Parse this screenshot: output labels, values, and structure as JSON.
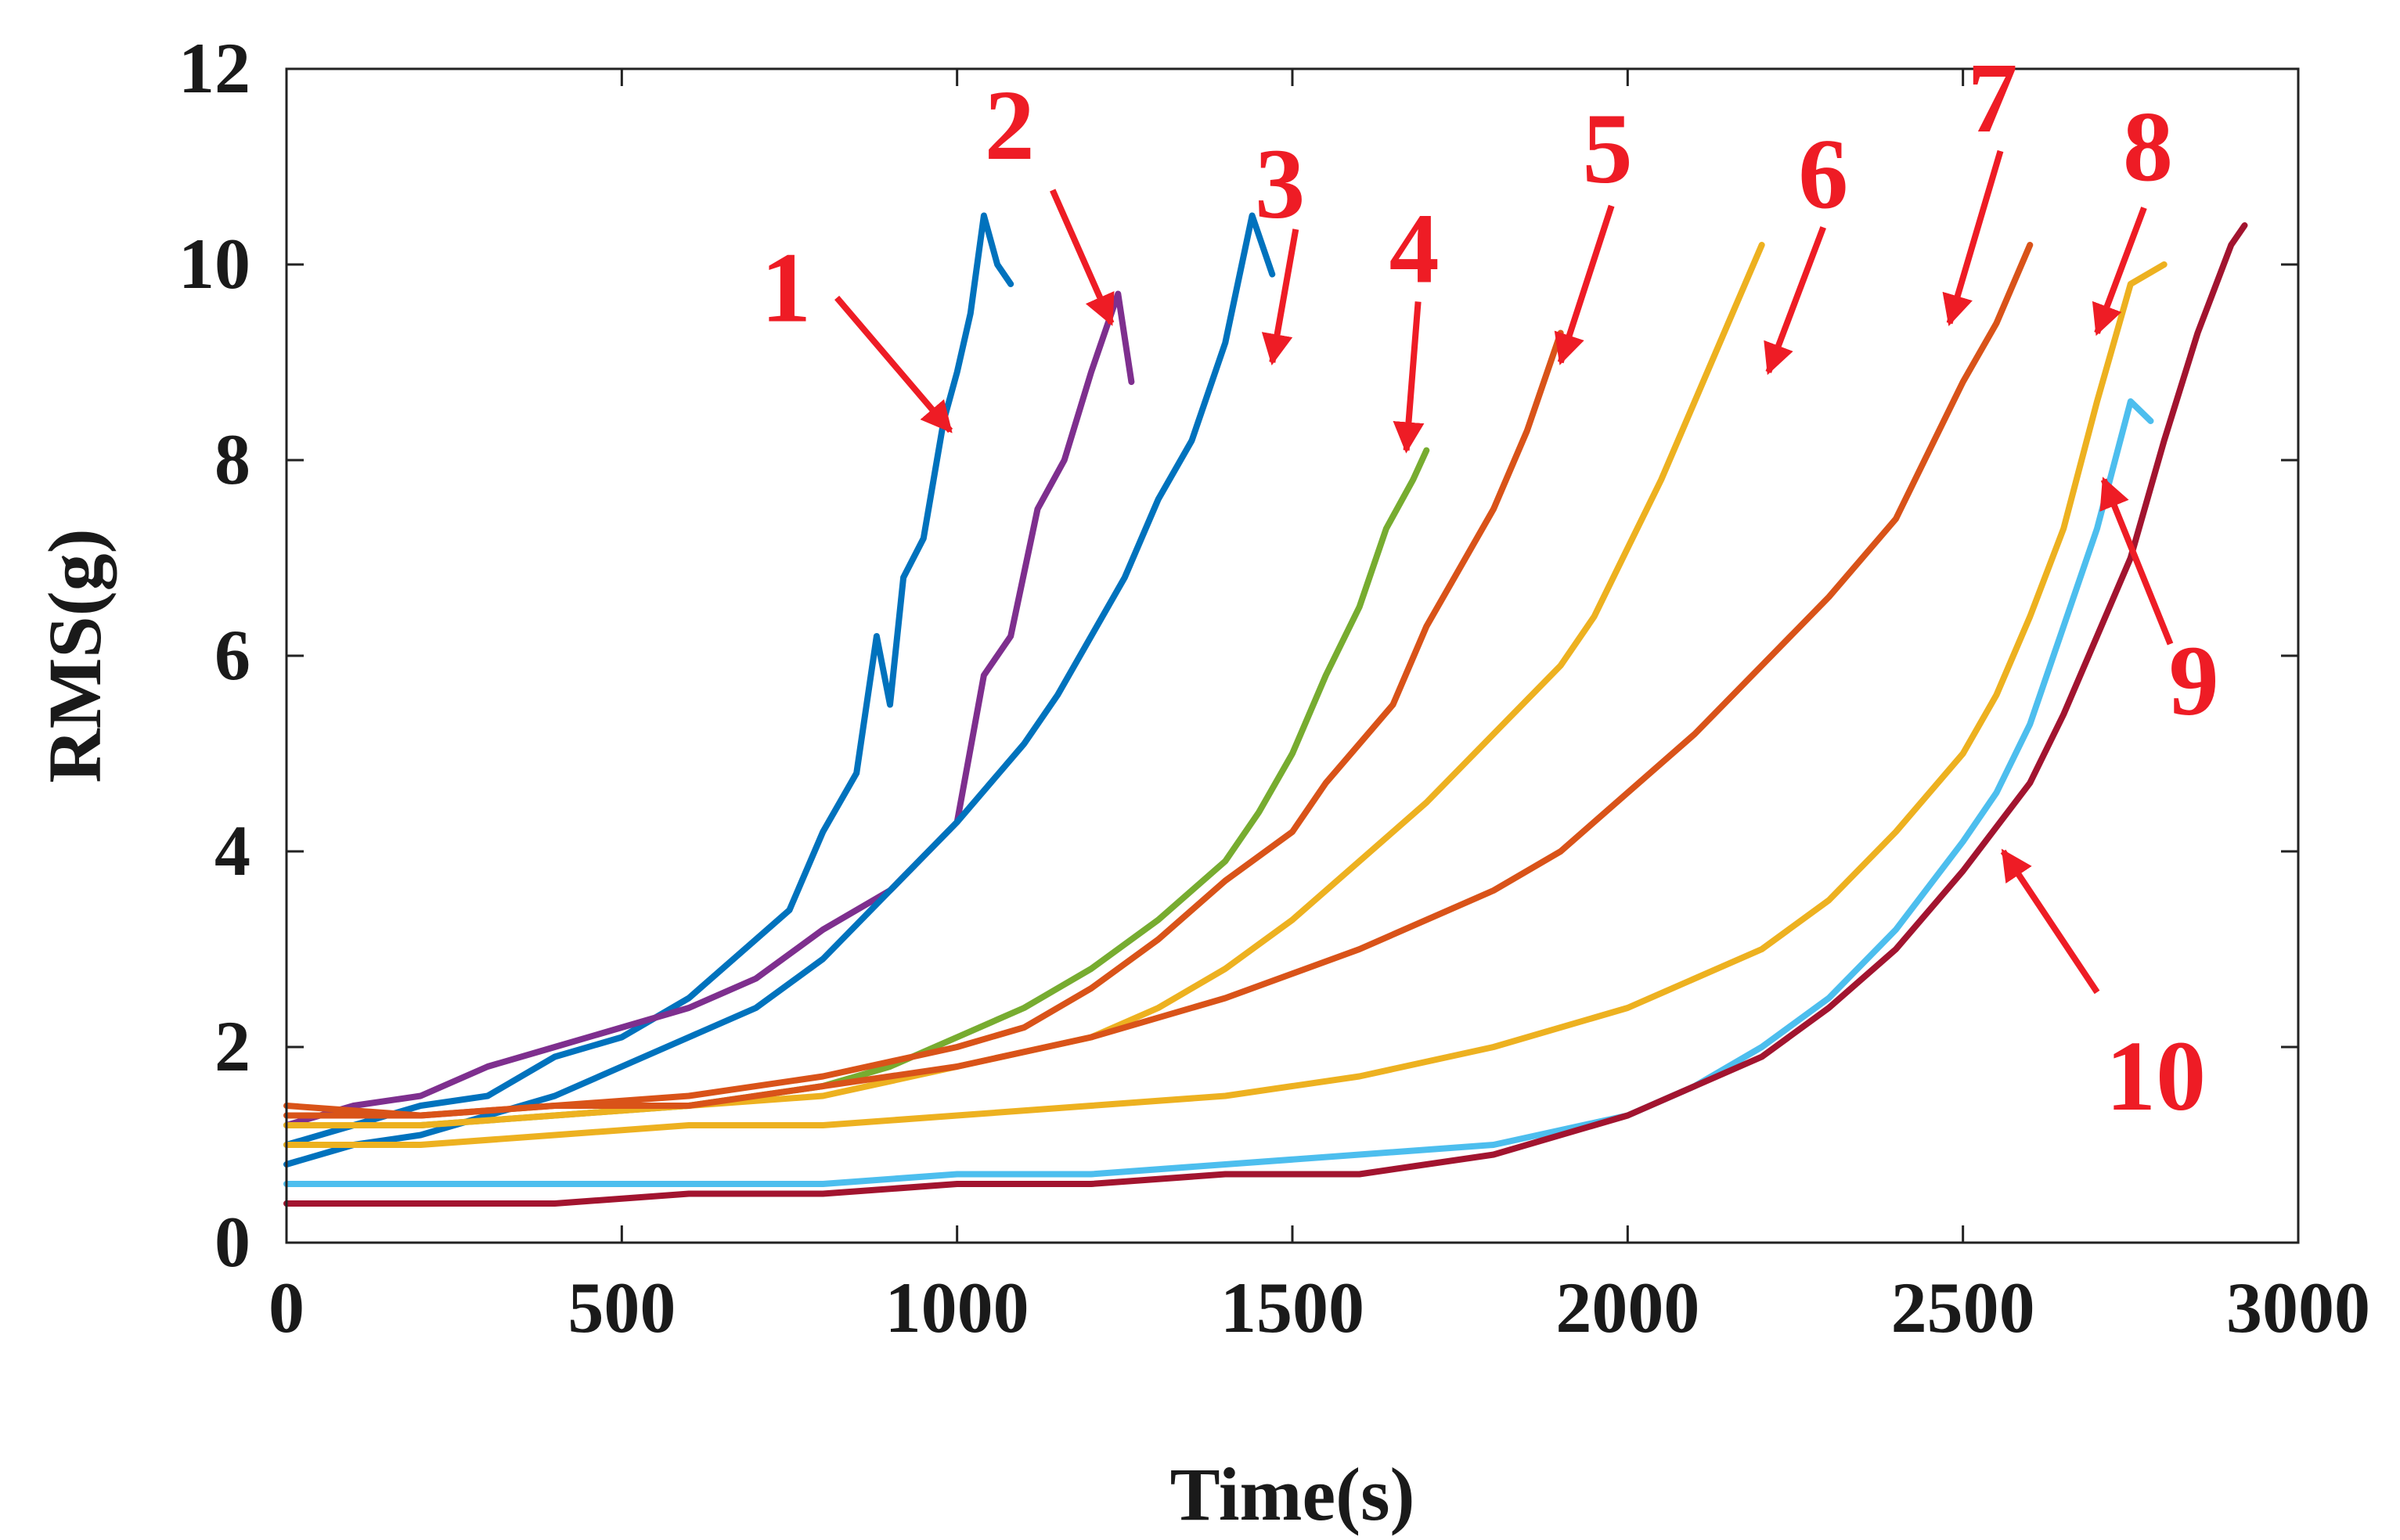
{
  "chart_data": {
    "type": "line",
    "title": "",
    "xlabel": "Time(s)",
    "ylabel": "RMS(g)",
    "xlim": [
      0,
      3000
    ],
    "ylim": [
      0,
      12
    ],
    "xticks": [
      0,
      500,
      1000,
      1500,
      2000,
      2500,
      3000
    ],
    "yticks": [
      0,
      2,
      4,
      6,
      8,
      10,
      12
    ],
    "grid": false,
    "legend": "none",
    "series": [
      {
        "name": "1",
        "color": "#0072BD",
        "x": [
          0,
          100,
          200,
          300,
          400,
          500,
          600,
          700,
          750,
          800,
          850,
          880,
          900,
          920,
          950,
          980,
          1000,
          1020,
          1040,
          1060,
          1080
        ],
        "y": [
          1.0,
          1.2,
          1.4,
          1.5,
          1.9,
          2.1,
          2.5,
          3.1,
          3.4,
          4.2,
          4.8,
          6.2,
          5.5,
          6.8,
          7.2,
          8.4,
          8.9,
          9.5,
          10.5,
          10.0,
          9.8
        ]
      },
      {
        "name": "2",
        "color": "#7E2F8E",
        "x": [
          0,
          100,
          200,
          300,
          400,
          500,
          600,
          700,
          800,
          900,
          1000,
          1040,
          1080,
          1120,
          1160,
          1200,
          1240,
          1260
        ],
        "y": [
          1.2,
          1.4,
          1.5,
          1.8,
          2.0,
          2.2,
          2.4,
          2.7,
          3.2,
          3.6,
          4.3,
          5.8,
          6.2,
          7.5,
          8.0,
          8.9,
          9.7,
          8.8
        ]
      },
      {
        "name": "3",
        "color": "#0072BD",
        "x": [
          0,
          100,
          200,
          300,
          400,
          500,
          600,
          700,
          800,
          900,
          1000,
          1100,
          1150,
          1200,
          1250,
          1300,
          1350,
          1400,
          1440,
          1470
        ],
        "y": [
          0.8,
          1.0,
          1.1,
          1.3,
          1.5,
          1.8,
          2.1,
          2.4,
          2.9,
          3.6,
          4.3,
          5.1,
          5.6,
          6.2,
          6.8,
          7.6,
          8.2,
          9.2,
          10.5,
          9.9
        ]
      },
      {
        "name": "4",
        "color": "#77AC30",
        "x": [
          0,
          200,
          400,
          600,
          700,
          800,
          900,
          1000,
          1100,
          1200,
          1300,
          1400,
          1450,
          1500,
          1550,
          1600,
          1640,
          1680,
          1700
        ],
        "y": [
          1.2,
          1.2,
          1.3,
          1.4,
          1.5,
          1.6,
          1.8,
          2.1,
          2.4,
          2.8,
          3.3,
          3.9,
          4.4,
          5.0,
          5.8,
          6.5,
          7.3,
          7.8,
          8.1
        ]
      },
      {
        "name": "5",
        "color": "#D95319",
        "x": [
          0,
          200,
          400,
          600,
          800,
          1000,
          1100,
          1200,
          1300,
          1400,
          1500,
          1550,
          1600,
          1650,
          1700,
          1750,
          1800,
          1850,
          1900
        ],
        "y": [
          1.4,
          1.3,
          1.4,
          1.5,
          1.7,
          2.0,
          2.2,
          2.6,
          3.1,
          3.7,
          4.2,
          4.7,
          5.1,
          5.5,
          6.3,
          6.9,
          7.5,
          8.3,
          9.3
        ]
      },
      {
        "name": "6",
        "color": "#EDB120",
        "x": [
          0,
          200,
          400,
          600,
          800,
          1000,
          1200,
          1300,
          1400,
          1500,
          1600,
          1700,
          1800,
          1900,
          1950,
          2000,
          2050,
          2100,
          2150,
          2200
        ],
        "y": [
          1.2,
          1.2,
          1.3,
          1.4,
          1.5,
          1.8,
          2.1,
          2.4,
          2.8,
          3.3,
          3.9,
          4.5,
          5.2,
          5.9,
          6.4,
          7.1,
          7.8,
          8.6,
          9.4,
          10.2
        ]
      },
      {
        "name": "7",
        "color": "#D95319",
        "x": [
          0,
          200,
          400,
          600,
          800,
          1000,
          1200,
          1400,
          1600,
          1800,
          1900,
          2000,
          2100,
          2200,
          2300,
          2400,
          2450,
          2500,
          2550,
          2600
        ],
        "y": [
          1.3,
          1.3,
          1.4,
          1.4,
          1.6,
          1.8,
          2.1,
          2.5,
          3.0,
          3.6,
          4.0,
          4.6,
          5.2,
          5.9,
          6.6,
          7.4,
          8.1,
          8.8,
          9.4,
          10.2
        ]
      },
      {
        "name": "8",
        "color": "#EDB120",
        "x": [
          0,
          200,
          400,
          600,
          800,
          1000,
          1200,
          1400,
          1600,
          1800,
          2000,
          2200,
          2300,
          2400,
          2500,
          2550,
          2600,
          2650,
          2700,
          2750,
          2800
        ],
        "y": [
          1.0,
          1.0,
          1.1,
          1.2,
          1.2,
          1.3,
          1.4,
          1.5,
          1.7,
          2.0,
          2.4,
          3.0,
          3.5,
          4.2,
          5.0,
          5.6,
          6.4,
          7.3,
          8.6,
          9.8,
          10.0
        ]
      },
      {
        "name": "9",
        "color": "#4DBEEE",
        "x": [
          0,
          200,
          400,
          600,
          800,
          1000,
          1200,
          1400,
          1600,
          1800,
          2000,
          2100,
          2200,
          2300,
          2400,
          2500,
          2550,
          2600,
          2650,
          2700,
          2750,
          2780
        ],
        "y": [
          0.6,
          0.6,
          0.6,
          0.6,
          0.6,
          0.7,
          0.7,
          0.8,
          0.9,
          1.0,
          1.3,
          1.6,
          2.0,
          2.5,
          3.2,
          4.1,
          4.6,
          5.3,
          6.3,
          7.3,
          8.6,
          8.4
        ]
      },
      {
        "name": "10",
        "color": "#A2142F",
        "x": [
          0,
          200,
          400,
          600,
          800,
          1000,
          1200,
          1400,
          1600,
          1800,
          2000,
          2100,
          2200,
          2300,
          2400,
          2500,
          2600,
          2650,
          2700,
          2750,
          2800,
          2850,
          2900,
          2920
        ],
        "y": [
          0.4,
          0.4,
          0.4,
          0.5,
          0.5,
          0.6,
          0.6,
          0.7,
          0.7,
          0.9,
          1.3,
          1.6,
          1.9,
          2.4,
          3.0,
          3.8,
          4.7,
          5.4,
          6.2,
          7.0,
          8.2,
          9.3,
          10.2,
          10.4
        ]
      }
    ],
    "annotations": [
      {
        "label": "1",
        "tip": [
          990,
          8.3
        ]
      },
      {
        "label": "2",
        "tip": [
          1230,
          9.4
        ]
      },
      {
        "label": "3",
        "tip": [
          1470,
          9.0
        ]
      },
      {
        "label": "4",
        "tip": [
          1670,
          8.1
        ]
      },
      {
        "label": "5",
        "tip": [
          1900,
          9.0
        ]
      },
      {
        "label": "6",
        "tip": [
          2210,
          8.9
        ]
      },
      {
        "label": "7",
        "tip": [
          2480,
          9.4
        ]
      },
      {
        "label": "8",
        "tip": [
          2700,
          9.3
        ]
      },
      {
        "label": "9",
        "tip": [
          2710,
          7.8
        ]
      },
      {
        "label": "10",
        "tip": [
          2560,
          4.0
        ]
      }
    ],
    "annotation_color": "#EE1C25"
  }
}
